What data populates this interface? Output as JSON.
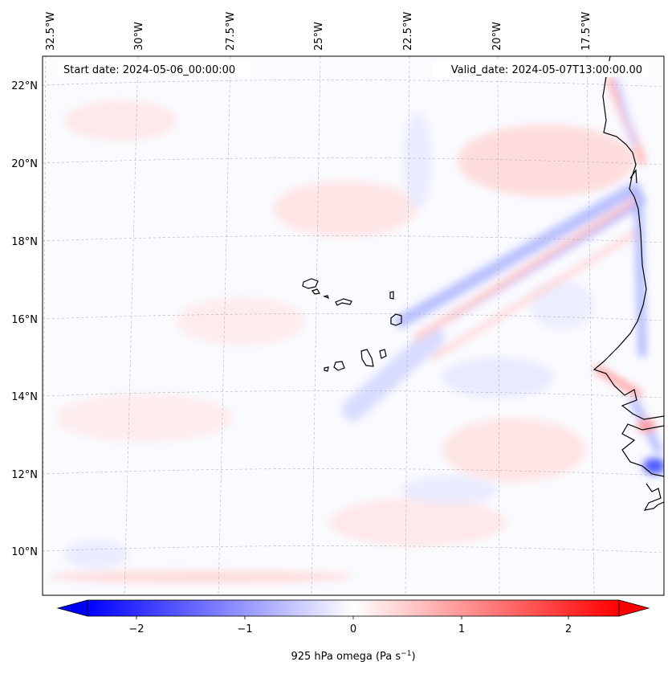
{
  "map": {
    "start_label": "Start date: 2024-05-06_00:00:00",
    "valid_label": "Valid_date: 2024-05-07T13:00:00.00",
    "lon_labels": [
      "32.5°W",
      "30°W",
      "27.5°W",
      "25°W",
      "22.5°W",
      "20°W",
      "17.5°W"
    ],
    "lat_labels": [
      "22°N",
      "20°N",
      "18°N",
      "16°N",
      "14°N",
      "12°N",
      "10°N"
    ],
    "colorbar": {
      "label_main": "925 hPa omega (Pa s",
      "label_exp": "−1",
      "label_close": ")",
      "ticks": [
        "−2",
        "−1",
        "0",
        "1",
        "2"
      ],
      "min": -2.75,
      "max": 2.75,
      "tick_values": [
        -2,
        -1,
        0,
        1,
        2
      ],
      "neg_color": "#0000ff",
      "pos_color": "#ff0000"
    }
  }
}
